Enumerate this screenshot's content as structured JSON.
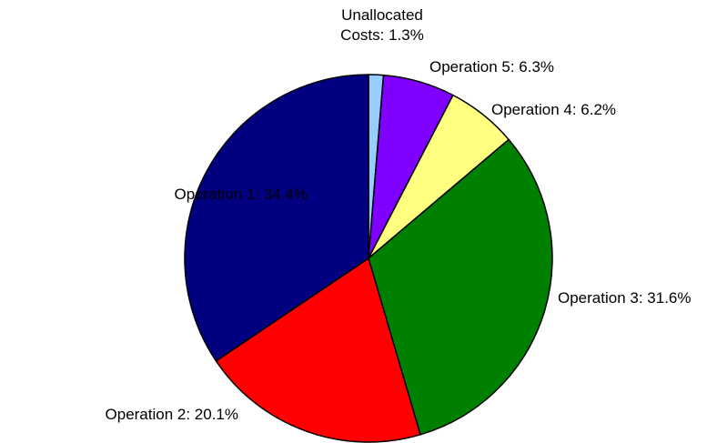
{
  "chart_data": {
    "type": "pie",
    "values": [
      1.3,
      6.3,
      6.2,
      31.6,
      20.1,
      34.4
    ],
    "value_labels": [
      "Unallocated\nCosts: 1.3%",
      "Operation 5: 6.3%",
      "Operation 4: 6.2%",
      "Operation 3: 31.6%",
      "Operation 2: 20.1%",
      "Operation 1:  34.4%"
    ],
    "colors": [
      "#99ccff",
      "#8000ff",
      "#ffff80",
      "#008000",
      "#ff0000",
      "#000080"
    ]
  }
}
